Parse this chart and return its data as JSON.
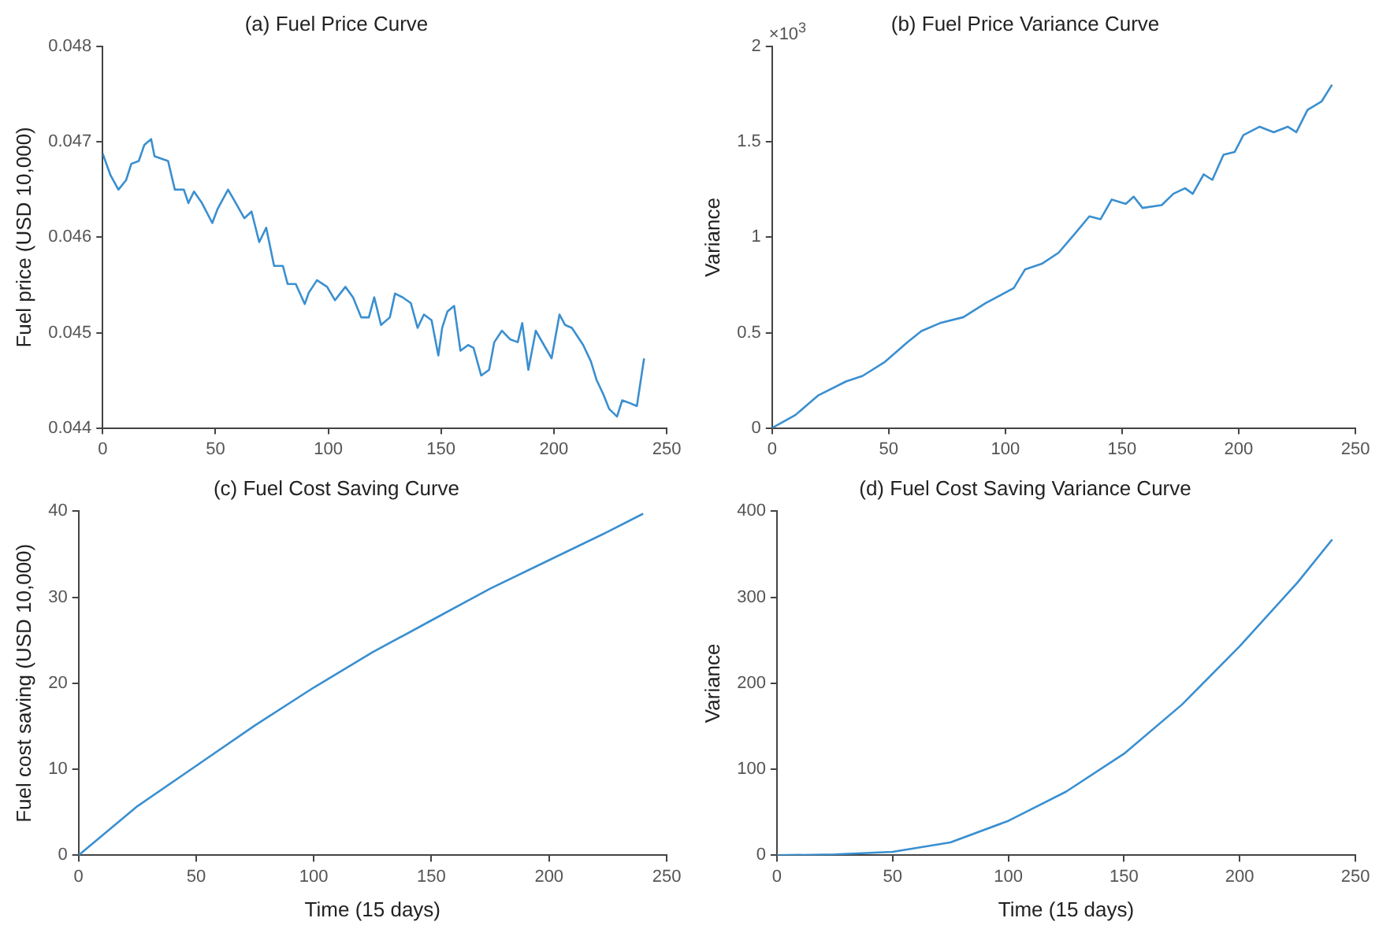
{
  "chart_data": [
    {
      "type": "line",
      "title": "(a) Fuel Price Curve",
      "ylabel": "Fuel price (USD 10,000)",
      "xlim": [
        0,
        250
      ],
      "xticks": [
        0,
        50,
        100,
        150,
        200,
        250
      ],
      "ylim": [
        0.044,
        0.048
      ],
      "yticks": [
        0.044,
        0.045,
        0.046,
        0.047,
        0.048
      ],
      "grid": false,
      "legend": false,
      "marker": "none",
      "line_style": "solid",
      "x": [
        0,
        3.5,
        7,
        10.4,
        12.7,
        16,
        18.5,
        21.5,
        23,
        29,
        32,
        36,
        38,
        40.5,
        44,
        48.6,
        51,
        55.6,
        59,
        62.8,
        66,
        69.4,
        72.5,
        76,
        79.9,
        82,
        85.6,
        89.6,
        91.4,
        95,
        99.5,
        103,
        107.6,
        111,
        114.6,
        118,
        120.4,
        123.4,
        127.3,
        129.6,
        133,
        136.6,
        139.6,
        142.4,
        145.8,
        148.8,
        150.5,
        152.8,
        155.8,
        158.6,
        162,
        164.4,
        167.8,
        171.3,
        173.6,
        177,
        180.6,
        184,
        186,
        188.7,
        192,
        195.6,
        199,
        202.5,
        205,
        208,
        213,
        216.4,
        219,
        222,
        224.5,
        228,
        230.3,
        233.8,
        236.8,
        240
      ],
      "series": [
        {
          "color": "#3a8fd0",
          "values": [
            0.04688,
            0.04665,
            0.0465,
            0.0466,
            0.04677,
            0.0468,
            0.04697,
            0.04703,
            0.04685,
            0.0468,
            0.0465,
            0.0465,
            0.04636,
            0.04648,
            0.04636,
            0.04615,
            0.0463,
            0.0465,
            0.04636,
            0.0462,
            0.04627,
            0.04595,
            0.0461,
            0.0457,
            0.0457,
            0.04551,
            0.04551,
            0.0453,
            0.04542,
            0.04555,
            0.04548,
            0.04534,
            0.04548,
            0.04537,
            0.04516,
            0.04516,
            0.04537,
            0.04508,
            0.04516,
            0.04541,
            0.04537,
            0.04531,
            0.04505,
            0.04519,
            0.04513,
            0.04476,
            0.04505,
            0.04522,
            0.04528,
            0.04481,
            0.04487,
            0.04484,
            0.04455,
            0.04461,
            0.0449,
            0.04502,
            0.04493,
            0.0449,
            0.0451,
            0.04461,
            0.04502,
            0.04487,
            0.04473,
            0.04519,
            0.04508,
            0.04505,
            0.04487,
            0.0447,
            0.0445,
            0.04435,
            0.0442,
            0.04412,
            0.04429,
            0.04426,
            0.04423,
            0.04473
          ]
        }
      ]
    },
    {
      "type": "line",
      "title": "(b) Fuel Price Variance Curve",
      "ylabel": "Variance",
      "annotations": [
        "×10$^{3}$"
      ],
      "xlim": [
        0,
        250
      ],
      "xticks": [
        0,
        50,
        100,
        150,
        200,
        {
          "value": 250,
          "label": "250"
        }
      ],
      "ylim": [
        0,
        2
      ],
      "yticks": [
        0,
        0.5,
        1,
        1.5,
        2
      ],
      "grid": false,
      "legend": false,
      "marker": "none",
      "line_style": "solid",
      "x": [
        0,
        10,
        19.7,
        31.7,
        38.8,
        48.4,
        58,
        64,
        72.4,
        82,
        91.6,
        103.6,
        108.4,
        115.6,
        122.8,
        130,
        136,
        140.8,
        145.6,
        151.6,
        155,
        158.8,
        167,
        172,
        177,
        180.3,
        185,
        188.7,
        193.5,
        198.3,
        202,
        209,
        215,
        221,
        224.7,
        229.5,
        235.5,
        240
      ],
      "series": [
        {
          "color": "#3a8fd0",
          "values": [
            0,
            0.068,
            0.17,
            0.244,
            0.273,
            0.347,
            0.449,
            0.508,
            0.552,
            0.581,
            0.655,
            0.734,
            0.831,
            0.861,
            0.919,
            1.022,
            1.11,
            1.095,
            1.198,
            1.175,
            1.213,
            1.154,
            1.169,
            1.228,
            1.257,
            1.228,
            1.33,
            1.301,
            1.433,
            1.448,
            1.536,
            1.58,
            1.551,
            1.58,
            1.551,
            1.668,
            1.712,
            1.8
          ]
        }
      ]
    },
    {
      "type": "line",
      "title": "(c) Fuel Cost Saving Curve",
      "xlabel": "Time (15 days)",
      "ylabel": "Fuel cost saving (USD 10,000)",
      "xlim": [
        0,
        250
      ],
      "xticks": [
        0,
        50,
        100,
        150,
        200,
        250
      ],
      "ylim": [
        0,
        40
      ],
      "yticks": [
        0,
        10,
        20,
        30,
        40
      ],
      "grid": false,
      "legend": false,
      "marker": "none",
      "line_style": "solid",
      "x": [
        0,
        25,
        50,
        75,
        100,
        125,
        150,
        175,
        200,
        225,
        240
      ],
      "series": [
        {
          "color": "#3a8fd0",
          "values": [
            0,
            5.7,
            10.4,
            15.1,
            19.5,
            23.6,
            27.3,
            31,
            34.3,
            37.6,
            39.7
          ]
        }
      ]
    },
    {
      "type": "line",
      "title": "(d) Fuel Cost Saving Variance Curve",
      "xlabel": "Time (15 days)",
      "ylabel": "Variance",
      "xlim": [
        0,
        250
      ],
      "xticks": [
        0,
        50,
        100,
        150,
        200,
        250
      ],
      "ylim": [
        0,
        400
      ],
      "yticks": [
        0,
        100,
        200,
        300,
        400
      ],
      "grid": false,
      "legend": false,
      "marker": "none",
      "line_style": "solid",
      "x": [
        0,
        25,
        50,
        75,
        100,
        125,
        150,
        175,
        200,
        225,
        240
      ],
      "series": [
        {
          "color": "#3a8fd0",
          "values": [
            0,
            1,
            4,
            15,
            40,
            74,
            118,
            175,
            243,
            317,
            367
          ]
        }
      ]
    }
  ]
}
